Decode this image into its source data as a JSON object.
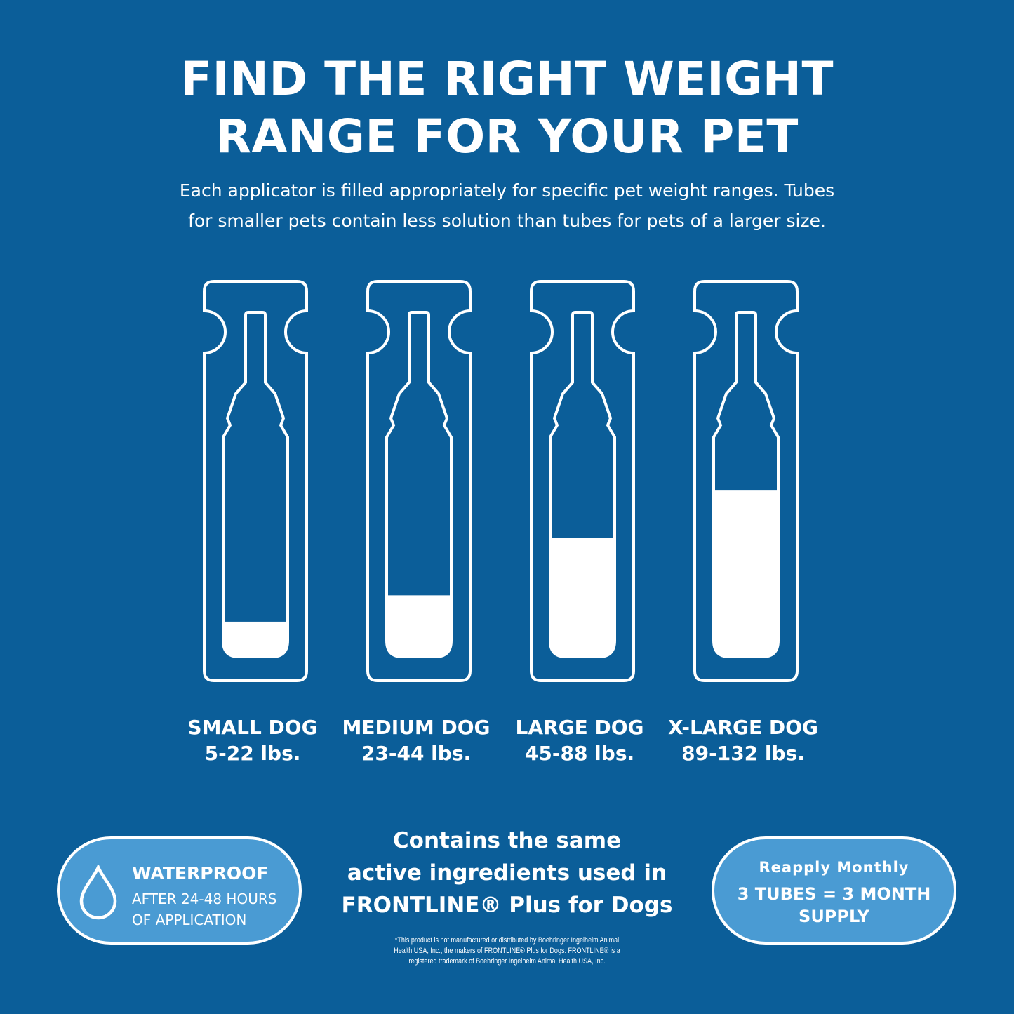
{
  "colors": {
    "background": "#0b5e99",
    "pill": "#4a9bd3",
    "line": "#ffffff"
  },
  "header": {
    "title_line1": "FIND THE RIGHT WEIGHT",
    "title_line2": "RANGE FOR YOUR PET",
    "subtitle_line1": "Each applicator is filled appropriately for specific pet weight ranges. Tubes",
    "subtitle_line2": "for smaller pets contain less solution than tubes for pets of a larger size."
  },
  "tubes": [
    {
      "size": "SMALL DOG",
      "weight": "5-22 lbs.",
      "fill_percent": 16
    },
    {
      "size": "MEDIUM DOG",
      "weight": "23-44 lbs.",
      "fill_percent": 28
    },
    {
      "size": "LARGE DOG",
      "weight": "45-88 lbs.",
      "fill_percent": 54
    },
    {
      "size": "X-LARGE DOG",
      "weight": "89-132 lbs.",
      "fill_percent": 76
    }
  ],
  "waterproof": {
    "icon": "water-drop-icon",
    "title": "WATERPROOF",
    "line1": "AFTER 24-48 HOURS",
    "line2": "OF APPLICATION"
  },
  "ingredients": {
    "line1": "Contains the same",
    "line2": "active ingredients used in",
    "line3": "FRONTLINE® Plus for Dogs"
  },
  "reapply": {
    "title": "Reapply Monthly",
    "line1": "3 TUBES = 3 MONTH",
    "line2": "SUPPLY"
  },
  "disclaimer": {
    "line1": "*This product is not manufactured or distributed by Boehringer Ingelheim Animal",
    "line2": "Health USA, Inc., the makers of FRONTLINE® Plus for Dogs. FRONTLINE® is a",
    "line3": "registered trademark of Boehringer Ingelheim Animal Health USA, Inc."
  }
}
